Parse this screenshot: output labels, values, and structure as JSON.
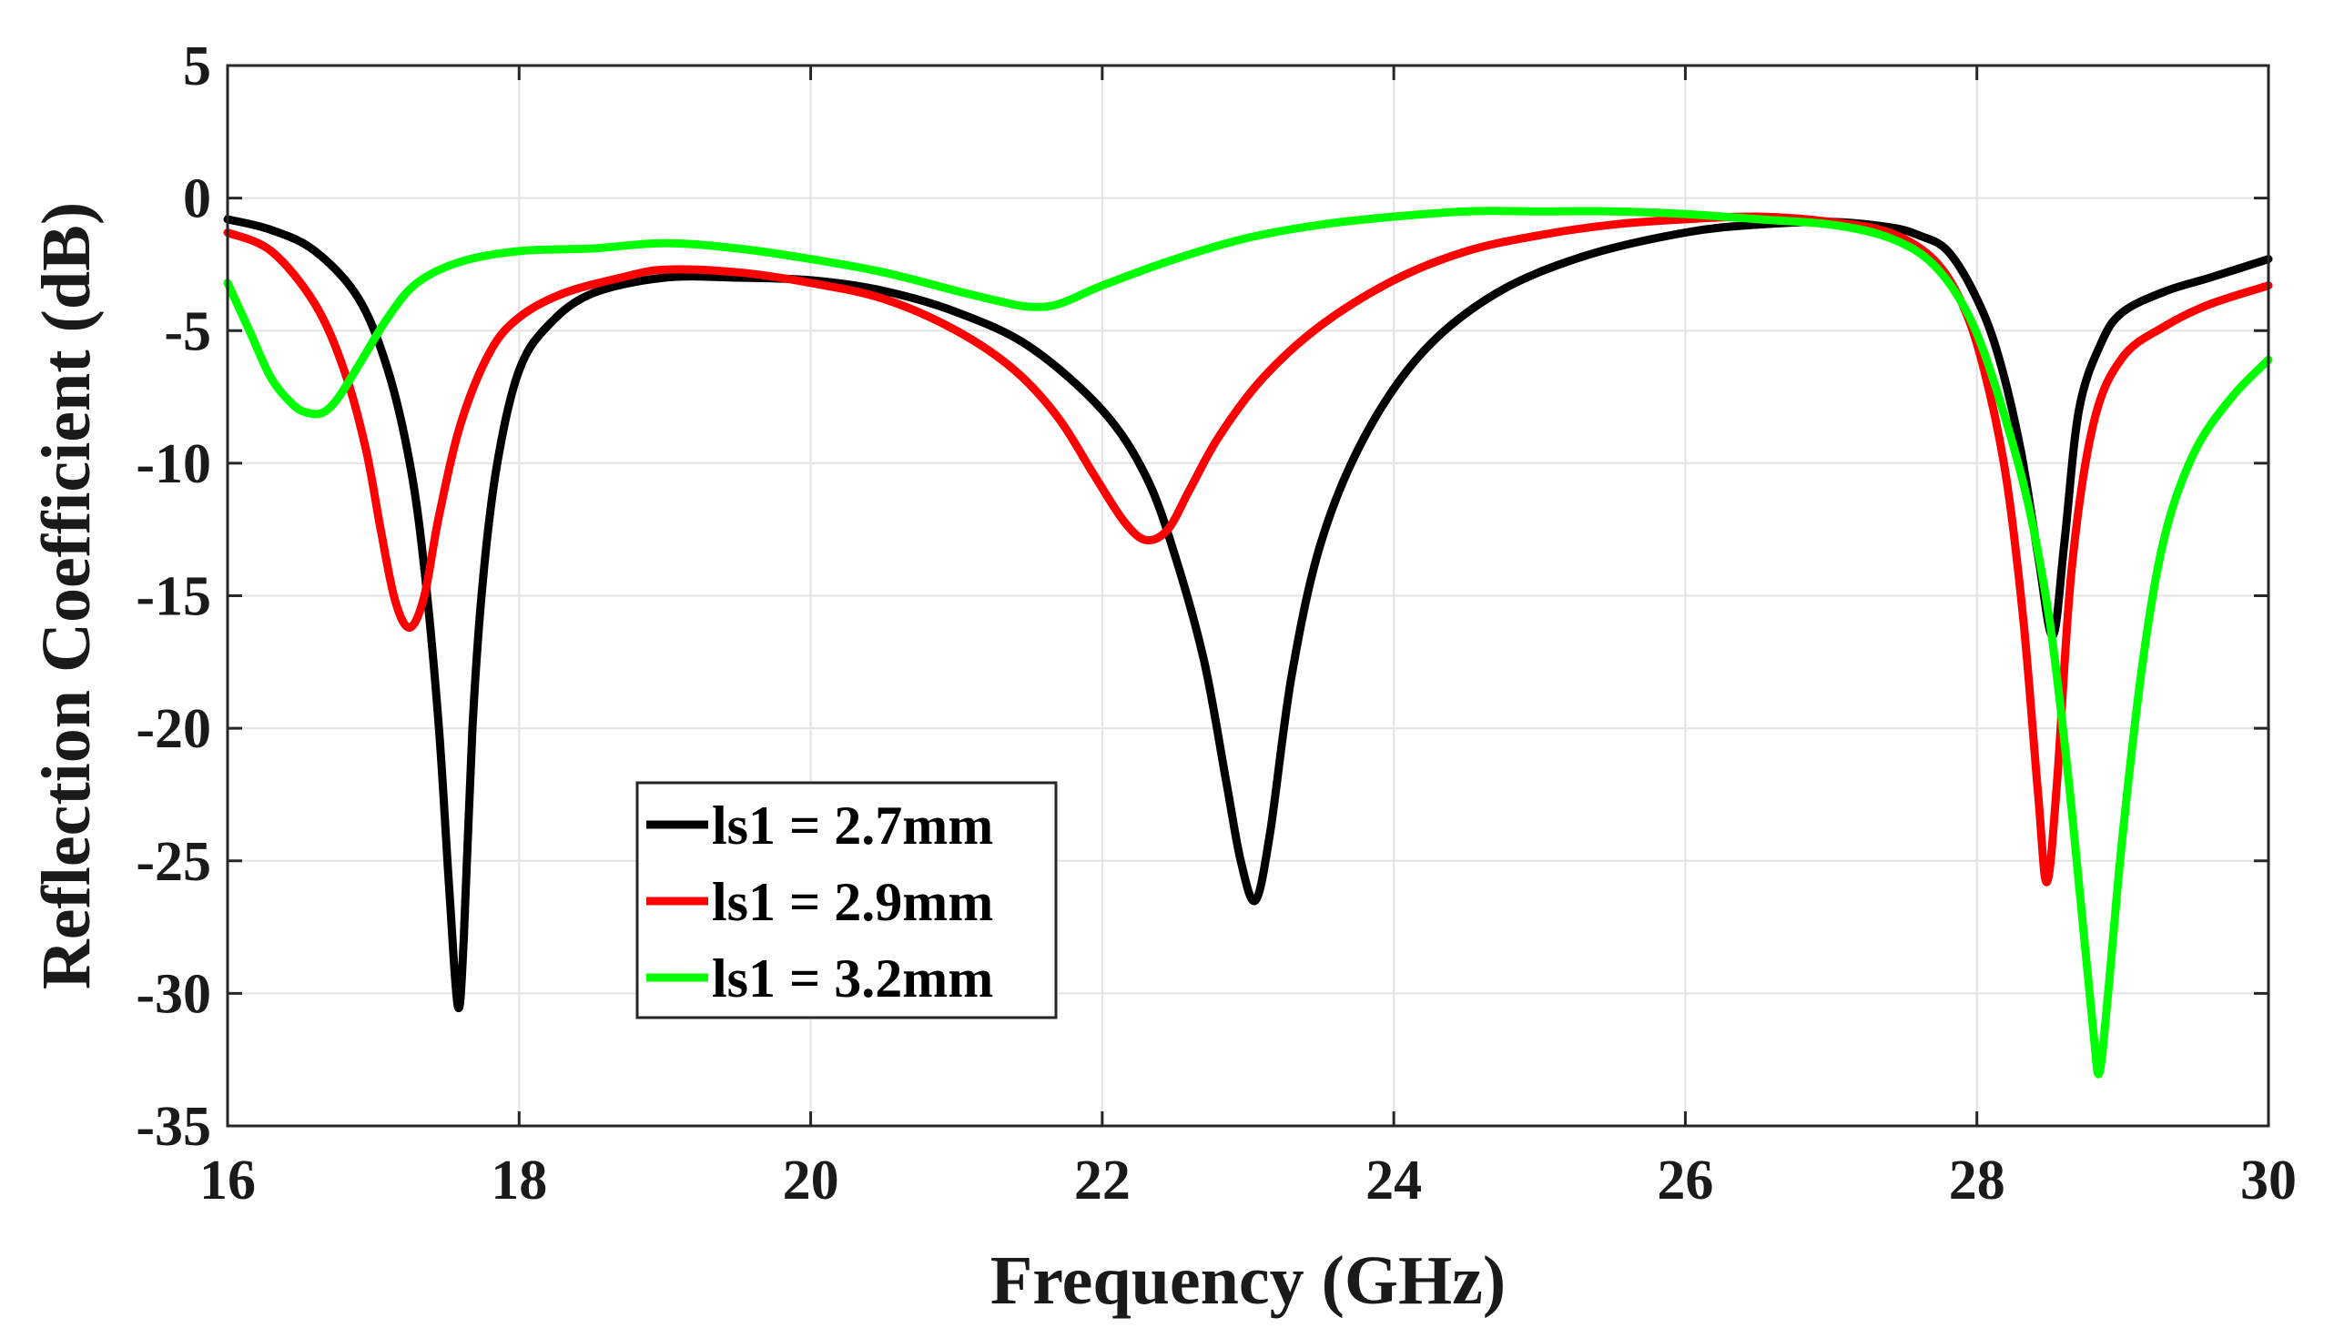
{
  "chart_data": {
    "type": "line",
    "title": "",
    "xlabel": "Frequency (GHz)",
    "ylabel": "Reflection Coefficient (dB)",
    "xlim": [
      16,
      30
    ],
    "ylim": [
      -35,
      5
    ],
    "xticks": [
      16,
      18,
      20,
      22,
      24,
      26,
      28,
      30
    ],
    "yticks": [
      5,
      0,
      -5,
      -10,
      -15,
      -20,
      -25,
      -30,
      -35
    ],
    "grid": true,
    "legend_position": "lower-left-center",
    "series": [
      {
        "name": "ls1 = 2.7mm",
        "color": "#000000",
        "x": [
          16.0,
          16.3,
          16.6,
          16.9,
          17.1,
          17.25,
          17.35,
          17.45,
          17.52,
          17.58,
          17.62,
          17.68,
          17.75,
          17.85,
          18.0,
          18.2,
          18.5,
          19.0,
          19.5,
          20.0,
          20.5,
          21.0,
          21.5,
          22.0,
          22.3,
          22.5,
          22.7,
          22.85,
          22.95,
          23.05,
          23.15,
          23.3,
          23.5,
          23.8,
          24.2,
          24.7,
          25.3,
          26.0,
          26.5,
          27.0,
          27.4,
          27.6,
          27.8,
          28.0,
          28.15,
          28.3,
          28.42,
          28.52,
          28.6,
          28.7,
          28.85,
          29.0,
          29.3,
          29.6,
          30.0
        ],
        "y": [
          -0.8,
          -1.2,
          -2.0,
          -3.8,
          -6.5,
          -10.0,
          -14.0,
          -20.0,
          -26.0,
          -30.5,
          -28.0,
          -20.0,
          -14.5,
          -10.0,
          -6.5,
          -4.8,
          -3.6,
          -3.0,
          -3.0,
          -3.1,
          -3.5,
          -4.3,
          -5.6,
          -8.0,
          -10.5,
          -13.5,
          -17.5,
          -22.0,
          -25.0,
          -26.5,
          -24.0,
          -18.0,
          -13.0,
          -9.0,
          -5.8,
          -3.6,
          -2.2,
          -1.3,
          -1.0,
          -0.9,
          -1.1,
          -1.4,
          -2.0,
          -3.8,
          -6.0,
          -9.5,
          -13.5,
          -16.5,
          -13.0,
          -8.0,
          -5.5,
          -4.3,
          -3.5,
          -3.0,
          -2.3
        ]
      },
      {
        "name": "ls1 = 2.9mm",
        "color": "#ff0000",
        "x": [
          16.0,
          16.3,
          16.6,
          16.8,
          16.95,
          17.05,
          17.15,
          17.25,
          17.35,
          17.45,
          17.6,
          17.8,
          18.0,
          18.3,
          18.7,
          19.0,
          19.5,
          20.0,
          20.5,
          21.0,
          21.4,
          21.7,
          21.95,
          22.15,
          22.3,
          22.45,
          22.6,
          22.8,
          23.1,
          23.5,
          24.0,
          24.5,
          25.0,
          25.5,
          26.0,
          26.5,
          27.0,
          27.4,
          27.7,
          27.9,
          28.05,
          28.2,
          28.32,
          28.42,
          28.48,
          28.55,
          28.65,
          28.8,
          29.0,
          29.3,
          29.6,
          30.0
        ],
        "y": [
          -1.3,
          -2.0,
          -4.0,
          -6.5,
          -9.5,
          -12.5,
          -15.2,
          -16.2,
          -15.0,
          -12.0,
          -8.5,
          -5.8,
          -4.5,
          -3.6,
          -3.0,
          -2.7,
          -2.8,
          -3.2,
          -3.8,
          -5.0,
          -6.5,
          -8.3,
          -10.5,
          -12.2,
          -12.9,
          -12.5,
          -11.0,
          -9.0,
          -6.8,
          -4.8,
          -3.1,
          -2.0,
          -1.4,
          -1.0,
          -0.8,
          -0.7,
          -0.9,
          -1.3,
          -2.3,
          -4.0,
          -6.5,
          -10.5,
          -16.0,
          -22.5,
          -25.8,
          -22.0,
          -14.0,
          -8.5,
          -6.0,
          -4.8,
          -4.0,
          -3.3
        ]
      },
      {
        "name": "ls1 = 3.2mm",
        "color": "#00ff00",
        "x": [
          16.0,
          16.15,
          16.3,
          16.45,
          16.55,
          16.65,
          16.75,
          16.9,
          17.1,
          17.3,
          17.6,
          18.0,
          18.5,
          19.0,
          19.5,
          20.0,
          20.5,
          21.0,
          21.3,
          21.5,
          21.7,
          22.0,
          22.5,
          23.0,
          23.5,
          24.0,
          24.5,
          25.0,
          25.5,
          26.0,
          26.5,
          27.0,
          27.4,
          27.7,
          27.95,
          28.15,
          28.35,
          28.5,
          28.62,
          28.72,
          28.8,
          28.84,
          28.9,
          29.0,
          29.15,
          29.3,
          29.5,
          29.75,
          30.0
        ],
        "y": [
          -3.2,
          -5.0,
          -6.8,
          -7.8,
          -8.1,
          -8.1,
          -7.6,
          -6.3,
          -4.5,
          -3.2,
          -2.4,
          -2.0,
          -1.9,
          -1.7,
          -1.9,
          -2.3,
          -2.8,
          -3.5,
          -3.9,
          -4.1,
          -4.0,
          -3.3,
          -2.3,
          -1.5,
          -1.0,
          -0.7,
          -0.5,
          -0.5,
          -0.5,
          -0.6,
          -0.8,
          -1.0,
          -1.5,
          -2.5,
          -4.5,
          -7.5,
          -11.5,
          -16.0,
          -21.5,
          -27.0,
          -31.5,
          -33.0,
          -30.0,
          -24.0,
          -17.0,
          -12.5,
          -9.5,
          -7.5,
          -6.1
        ]
      }
    ]
  }
}
